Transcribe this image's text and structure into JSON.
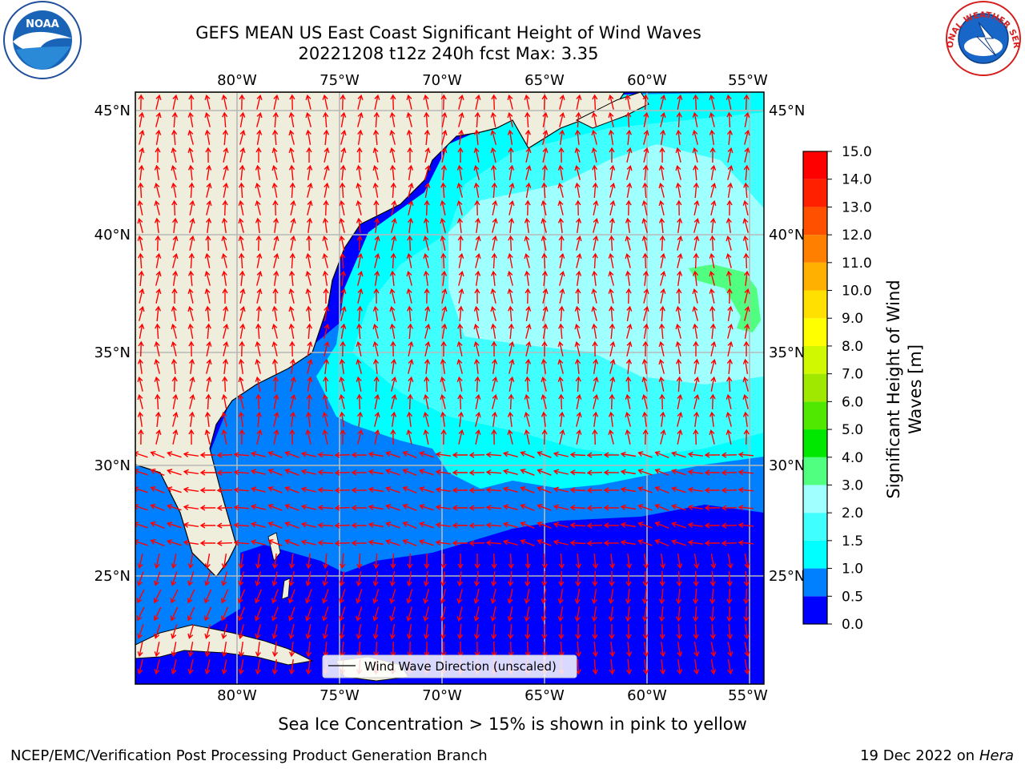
{
  "title": {
    "line1": "GEFS MEAN US East Coast Significant Height of Wind Waves",
    "line2": "20221208 t12z 240h fcst   Max: 3.35"
  },
  "map": {
    "lon_labels": [
      "80°W",
      "75°W",
      "70°W",
      "65°W",
      "60°W",
      "55°W"
    ],
    "lat_labels": [
      "45°N",
      "40°N",
      "35°N",
      "30°N",
      "25°N"
    ],
    "lon_range": [
      -85,
      -54
    ],
    "lat_range": [
      20.5,
      46
    ],
    "legend_label": "Wind Wave Direction (unscaled)",
    "land_color": "#efeedc",
    "arrow_color": "#ff0000"
  },
  "colorbar": {
    "label_line1": "Significant Height of Wind",
    "label_line2": "Waves [m]",
    "ticks": [
      "0.0",
      "0.5",
      "1.0",
      "1.5",
      "2.0",
      "3.0",
      "4.0",
      "5.0",
      "6.0",
      "7.0",
      "8.0",
      "9.0",
      "10.0",
      "11.0",
      "12.0",
      "13.0",
      "14.0",
      "15.0"
    ],
    "colors": [
      "#0000ff",
      "#0080ff",
      "#00ffff",
      "#40ffff",
      "#a0ffff",
      "#50ff80",
      "#00e800",
      "#50e800",
      "#a0e800",
      "#d0f800",
      "#ffff00",
      "#ffe000",
      "#ffb000",
      "#ff8000",
      "#ff5000",
      "#ff2000",
      "#ff0000"
    ]
  },
  "logos": {
    "left_text": "NOAA",
    "right_text": "NATIONAL WEATHER SERVICE"
  },
  "footer": {
    "note": "Sea Ice Concentration > 15% is shown in pink to yellow",
    "credit": "NCEP/EMC/Verification Post Processing Product Generation Branch",
    "date": "19 Dec 2022 on",
    "host": "Hera"
  }
}
